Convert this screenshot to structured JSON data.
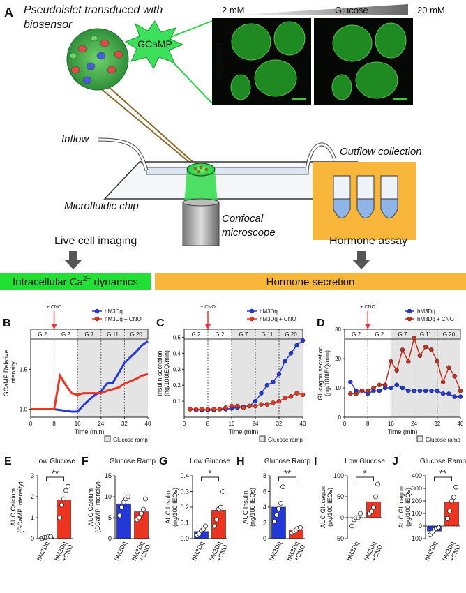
{
  "panel_a": {
    "letter": "A",
    "title_lines": [
      "Pseudoislet transduced with",
      "biosensor"
    ],
    "sensor": "GCaMP",
    "glucose_low": "2 mM",
    "glucose_label": "Glucose",
    "glucose_high": "20 mM",
    "image_label": "GCaMP6f",
    "inflow": "Inflow",
    "outflow": "Outflow collection",
    "chip": "Microfluidic chip",
    "microscope_lines": [
      "Confocal",
      "microscope"
    ],
    "imaging": "Live cell imaging",
    "assay": "Hormone assay"
  },
  "sections": [
    {
      "text": "Intracellular Ca",
      "sup": "2+",
      "tail": " dynamics"
    },
    {
      "text": "Hormone secretion"
    }
  ],
  "chart_data": [
    {
      "letter": "B",
      "type": "line",
      "x": [
        0,
        2,
        4,
        6,
        8,
        10,
        12,
        14,
        16,
        18,
        20,
        22,
        24,
        26,
        28,
        30,
        32,
        34,
        36,
        38,
        40
      ],
      "markers": false,
      "series": [
        {
          "name": "hM3Dq",
          "color": "#2238d8",
          "values": [
            1.0,
            1.0,
            1.0,
            1.0,
            1.0,
            0.99,
            0.98,
            0.97,
            0.97,
            1.05,
            1.12,
            1.18,
            1.22,
            1.32,
            1.33,
            1.45,
            1.58,
            1.65,
            1.72,
            1.8,
            1.85
          ]
        },
        {
          "name": "hM3Dq + CNO",
          "color": "#ec3420",
          "values": [
            1.0,
            1.0,
            1.0,
            1.0,
            1.0,
            1.42,
            1.3,
            1.2,
            1.18,
            1.2,
            1.2,
            1.2,
            1.2,
            1.23,
            1.25,
            1.27,
            1.32,
            1.35,
            1.38,
            1.42,
            1.44
          ]
        }
      ],
      "xlim": [
        0,
        40
      ],
      "xticks": [
        0,
        8,
        16,
        24,
        32,
        40
      ],
      "ylim": [
        0.9,
        2.0
      ],
      "yticks": [
        {
          "value": 1,
          "label": "1.0"
        },
        {
          "value": 1.5,
          "label": "1.5"
        }
      ],
      "xlabel": "Time (min)",
      "ylabel": [
        "GCaMP Relative",
        "Intensity"
      ],
      "phases": [
        {
          "label": "G 2",
          "start": 0,
          "end": 8,
          "shaded": false
        },
        {
          "label": "G 2",
          "start": 8,
          "end": 16,
          "shaded": false
        },
        {
          "label": "G 7",
          "start": 16,
          "end": 24,
          "shaded": true
        },
        {
          "label": "G 11",
          "start": 24,
          "end": 32,
          "shaded": true
        },
        {
          "label": "G 20",
          "start": 32,
          "end": 40,
          "shaded": true
        }
      ],
      "shade_label": "Glucose ramp",
      "annotation": {
        "text": "+ CNO",
        "x": 8
      }
    },
    {
      "letter": "C",
      "type": "line",
      "x": [
        2,
        4,
        6,
        8,
        10,
        12,
        14,
        16,
        18,
        20,
        22,
        24,
        26,
        28,
        30,
        32,
        34,
        36,
        38,
        40
      ],
      "markers": true,
      "series": [
        {
          "name": "hM3Dq",
          "color": "#2238d8",
          "values": [
            0.05,
            0.045,
            0.045,
            0.045,
            0.045,
            0.05,
            0.05,
            0.055,
            0.06,
            0.065,
            0.07,
            0.1,
            0.15,
            0.2,
            0.22,
            0.27,
            0.35,
            0.4,
            0.45,
            0.48
          ]
        },
        {
          "name": "hM3Dq + CNO",
          "color": "#ec3420",
          "values": [
            0.05,
            0.05,
            0.05,
            0.05,
            0.05,
            0.05,
            0.06,
            0.07,
            0.07,
            0.06,
            0.07,
            0.07,
            0.08,
            0.08,
            0.09,
            0.1,
            0.12,
            0.13,
            0.15,
            0.14
          ]
        }
      ],
      "xlim": [
        0,
        40
      ],
      "xticks": [
        0,
        8,
        16,
        24,
        32,
        40
      ],
      "ylim": [
        0,
        0.55
      ],
      "yticks": [
        0.1,
        0.2,
        0.3,
        0.4,
        0.5
      ],
      "xlabel": "Time (min)",
      "ylabel": [
        "Insulin secretion",
        "(ng/100IEQ/min)"
      ],
      "phases": [
        {
          "label": "G 2",
          "start": 0,
          "end": 8,
          "shaded": false
        },
        {
          "label": "G 2",
          "start": 8,
          "end": 16,
          "shaded": false
        },
        {
          "label": "G 7",
          "start": 16,
          "end": 24,
          "shaded": true
        },
        {
          "label": "G 11",
          "start": 24,
          "end": 32,
          "shaded": true
        },
        {
          "label": "G 20",
          "start": 32,
          "end": 40,
          "shaded": true
        }
      ],
      "shade_label": "Glucose ramp",
      "annotation": {
        "text": "+ CNO",
        "x": 8
      }
    },
    {
      "letter": "D",
      "type": "line",
      "x": [
        2,
        4,
        6,
        8,
        10,
        12,
        14,
        16,
        18,
        20,
        22,
        24,
        26,
        28,
        30,
        32,
        34,
        36,
        38,
        40
      ],
      "markers": true,
      "series": [
        {
          "name": "hM3Dq",
          "color": "#2238d8",
          "values": [
            12,
            9,
            9,
            8,
            9,
            9,
            10,
            10,
            11,
            10,
            9,
            9,
            9,
            9,
            9,
            9,
            8,
            8,
            7,
            7
          ]
        },
        {
          "name": "hM3Dq + CNO",
          "color": "#c8301e",
          "values": [
            8,
            8,
            9,
            9,
            10,
            11,
            11,
            19,
            16,
            23,
            19,
            27,
            21,
            24,
            23,
            19,
            12,
            17,
            14,
            9
          ]
        }
      ],
      "xlim": [
        0,
        40
      ],
      "xticks": [
        0,
        8,
        16,
        24,
        32,
        40
      ],
      "ylim": [
        0,
        30
      ],
      "yticks": [
        0,
        10,
        20,
        30
      ],
      "xlabel": "Time (min)",
      "ylabel": [
        "Glucagon secretion",
        "(pg/100IEQ/min)"
      ],
      "phases": [
        {
          "label": "G 2",
          "start": 0,
          "end": 8,
          "shaded": false
        },
        {
          "label": "G 2",
          "start": 8,
          "end": 16,
          "shaded": false
        },
        {
          "label": "G 7",
          "start": 16,
          "end": 24,
          "shaded": true
        },
        {
          "label": "G 11",
          "start": 24,
          "end": 32,
          "shaded": true
        },
        {
          "label": "G 20",
          "start": 32,
          "end": 40,
          "shaded": true
        }
      ],
      "shade_label": "Glucose ramp",
      "annotation": {
        "text": "+ CNO",
        "x": 8
      }
    },
    {
      "letter": "E",
      "type": "bar",
      "title": "Low Glucose",
      "ylabel": [
        "AUC Calcium",
        "(GCaMP Intensity)"
      ],
      "categories": [
        [
          "hM3Dq"
        ],
        [
          "hM3Dq",
          "+CNO"
        ]
      ],
      "colors": [
        "#2238d8",
        "#ec3420"
      ],
      "values": [
        0.05,
        1.85
      ],
      "points": [
        [
          0,
          0.05,
          0.05,
          0.1,
          0.1
        ],
        [
          1.0,
          1.6,
          1.9,
          2.3,
          2.5
        ]
      ],
      "ylim": [
        0,
        3
      ],
      "yticks": [
        0,
        1,
        2,
        3
      ],
      "significance": "**"
    },
    {
      "letter": "F",
      "type": "bar",
      "title": "Glucose Ramp",
      "ylabel": [
        "AUC Calcium",
        "(GCaMP Intensity)"
      ],
      "categories": [
        [
          "hM3Dq"
        ],
        [
          "hM3Dq",
          "+CNO"
        ]
      ],
      "colors": [
        "#2238d8",
        "#ec3420"
      ],
      "values": [
        8.3,
        6.4
      ],
      "points": [
        [
          5.5,
          7.5,
          8.7,
          9.5,
          10
        ],
        [
          4.5,
          5,
          6,
          7,
          9.5
        ]
      ],
      "ylim": [
        0,
        15
      ],
      "yticks": [
        0,
        5,
        10,
        15
      ]
    },
    {
      "letter": "G",
      "type": "bar",
      "title": "Low Glucose",
      "ylabel": [
        "AUC Insulin",
        "(ng/100 IEQs)"
      ],
      "categories": [
        [
          "hM3Dq"
        ],
        [
          "hM3Dq",
          "+CNO"
        ]
      ],
      "colors": [
        "#2238d8",
        "#ec3420"
      ],
      "values": [
        0.045,
        0.18
      ],
      "points": [
        [
          0.02,
          0.03,
          0.05,
          0.06,
          0.08
        ],
        [
          0.08,
          0.12,
          0.19,
          0.2,
          0.3
        ]
      ],
      "ylim": [
        0,
        0.4
      ],
      "yticks": [
        {
          "value": 0,
          "label": "0.0"
        },
        0.1,
        0.2,
        0.3,
        0.4
      ],
      "significance": "*"
    },
    {
      "letter": "H",
      "type": "bar",
      "title": "Glucose Ramp",
      "ylabel": [
        "AUC Insulin",
        "(ng/100 IEQs)"
      ],
      "categories": [
        [
          "hM3Dq"
        ],
        [
          "hM3Dq",
          "+CNO"
        ]
      ],
      "colors": [
        "#2238d8",
        "#ec3420"
      ],
      "values": [
        4.0,
        1.1
      ],
      "points": [
        [
          2.2,
          3,
          3.8,
          4.5,
          6.6
        ],
        [
          0.7,
          0.9,
          1.1,
          1.3,
          1.4
        ]
      ],
      "ylim": [
        0,
        8
      ],
      "yticks": [
        0,
        2,
        4,
        6,
        8
      ],
      "significance": "**"
    },
    {
      "letter": "I",
      "type": "bar",
      "title": "Low Glucose",
      "ylabel": [
        "AUC Glucagon",
        "(pg/100 IEQs)"
      ],
      "categories": [
        [
          "hM3Dq"
        ],
        [
          "hM3Dq",
          "+CNO"
        ]
      ],
      "colors": [
        "#2238d8",
        "#ec3420"
      ],
      "values": [
        0,
        38
      ],
      "points": [
        [
          -20,
          -5,
          0,
          0,
          10
        ],
        [
          10,
          15,
          25,
          50,
          80
        ]
      ],
      "ylim": [
        -50,
        100
      ],
      "yticks": [
        -50,
        0,
        50,
        100
      ],
      "significance": "*"
    },
    {
      "letter": "J",
      "type": "bar",
      "title": "Glucose Ramp",
      "ylabel": [
        "AUC Glucagon",
        "(pg/100 IEQs)"
      ],
      "categories": [
        [
          "hM3Dq"
        ],
        [
          "hM3Dq",
          "+CNO"
        ]
      ],
      "colors": [
        "#2238d8",
        "#ec3420"
      ],
      "values": [
        -40,
        190
      ],
      "points": [
        [
          -70,
          -50,
          -30,
          -20,
          -10
        ],
        [
          60,
          120,
          200,
          230,
          310
        ]
      ],
      "ylim": [
        -100,
        400
      ],
      "yticks": [
        -100,
        0,
        100,
        200,
        300,
        400
      ],
      "significance": "**"
    }
  ]
}
